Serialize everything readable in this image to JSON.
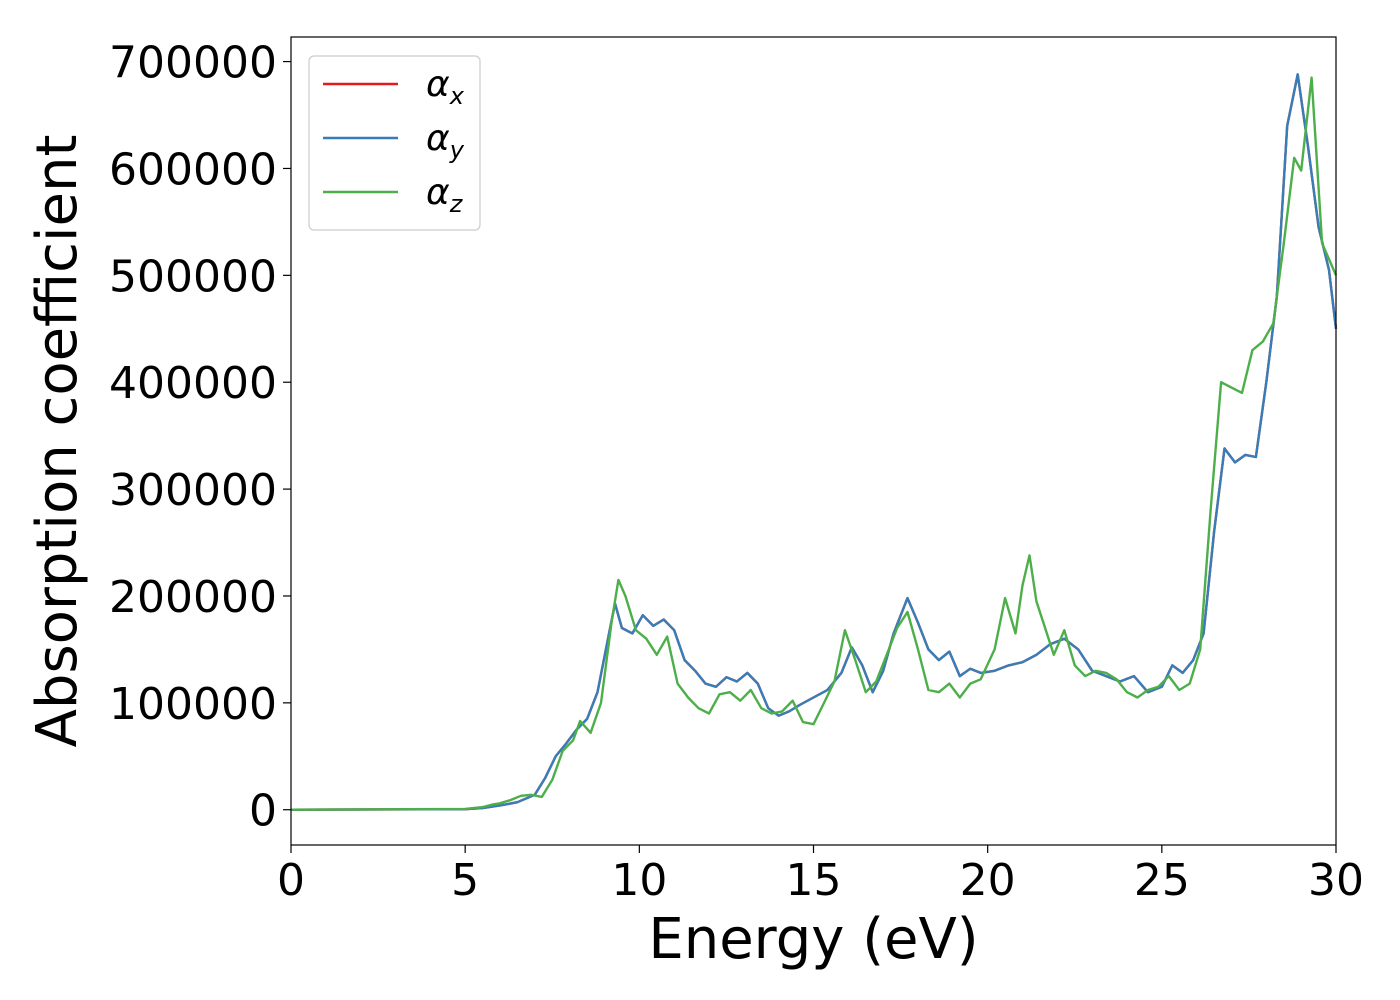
{
  "chart_data": {
    "type": "line",
    "xlabel": "Energy (eV)",
    "ylabel": "Absorption coefficient",
    "xlim": [
      0,
      30
    ],
    "ylim": [
      -33000,
      723000
    ],
    "xticks": [
      0,
      5,
      10,
      15,
      20,
      25,
      30
    ],
    "yticks": [
      0,
      100000,
      200000,
      300000,
      400000,
      500000,
      600000,
      700000
    ],
    "grid": false,
    "legend_position": "top-left",
    "series": [
      {
        "name": "α",
        "subscript": "x",
        "color": "#e41a1c",
        "x": [
          0,
          5,
          5.5,
          6,
          6.5,
          7,
          7.3,
          7.6,
          7.9,
          8.2,
          8.5,
          8.8,
          9.1,
          9.3,
          9.5,
          9.8,
          10.1,
          10.4,
          10.7,
          11,
          11.3,
          11.6,
          11.9,
          12.2,
          12.5,
          12.8,
          13.1,
          13.4,
          13.7,
          14,
          14.3,
          14.6,
          15,
          15.4,
          15.8,
          16.1,
          16.4,
          16.7,
          17,
          17.3,
          17.7,
          18,
          18.3,
          18.6,
          18.9,
          19.2,
          19.5,
          19.8,
          20.2,
          20.6,
          21,
          21.4,
          21.8,
          22.2,
          22.6,
          23,
          23.4,
          23.8,
          24.2,
          24.6,
          25,
          25.3,
          25.6,
          25.9,
          26.2,
          26.5,
          26.8,
          27.1,
          27.4,
          27.7,
          28,
          28.3,
          28.6,
          28.9,
          29.2,
          29.5,
          29.8,
          30
        ],
        "values": [
          0,
          500,
          1500,
          4000,
          7000,
          14000,
          30000,
          50000,
          62000,
          75000,
          85000,
          110000,
          160000,
          193000,
          170000,
          165000,
          182000,
          172000,
          178000,
          168000,
          140000,
          130000,
          118000,
          115000,
          124000,
          120000,
          128000,
          118000,
          95000,
          88000,
          92000,
          98000,
          105000,
          112000,
          128000,
          152000,
          135000,
          110000,
          130000,
          165000,
          198000,
          175000,
          150000,
          140000,
          148000,
          125000,
          132000,
          128000,
          130000,
          135000,
          138000,
          145000,
          155000,
          160000,
          150000,
          130000,
          125000,
          120000,
          125000,
          110000,
          115000,
          135000,
          128000,
          140000,
          165000,
          260000,
          338000,
          325000,
          332000,
          330000,
          400000,
          480000,
          640000,
          688000,
          620000,
          545000,
          505000,
          450000
        ]
      },
      {
        "name": "α",
        "subscript": "y",
        "color": "#377eb8",
        "x": [
          0,
          5,
          5.5,
          6,
          6.5,
          7,
          7.3,
          7.6,
          7.9,
          8.2,
          8.5,
          8.8,
          9.1,
          9.3,
          9.5,
          9.8,
          10.1,
          10.4,
          10.7,
          11,
          11.3,
          11.6,
          11.9,
          12.2,
          12.5,
          12.8,
          13.1,
          13.4,
          13.7,
          14,
          14.3,
          14.6,
          15,
          15.4,
          15.8,
          16.1,
          16.4,
          16.7,
          17,
          17.3,
          17.7,
          18,
          18.3,
          18.6,
          18.9,
          19.2,
          19.5,
          19.8,
          20.2,
          20.6,
          21,
          21.4,
          21.8,
          22.2,
          22.6,
          23,
          23.4,
          23.8,
          24.2,
          24.6,
          25,
          25.3,
          25.6,
          25.9,
          26.2,
          26.5,
          26.8,
          27.1,
          27.4,
          27.7,
          28,
          28.3,
          28.6,
          28.9,
          29.2,
          29.5,
          29.8,
          30
        ],
        "values": [
          0,
          500,
          1500,
          4000,
          7000,
          14000,
          30000,
          50000,
          62000,
          75000,
          85000,
          110000,
          160000,
          193000,
          170000,
          165000,
          182000,
          172000,
          178000,
          168000,
          140000,
          130000,
          118000,
          115000,
          124000,
          120000,
          128000,
          118000,
          95000,
          88000,
          92000,
          98000,
          105000,
          112000,
          128000,
          152000,
          135000,
          110000,
          130000,
          165000,
          198000,
          175000,
          150000,
          140000,
          148000,
          125000,
          132000,
          128000,
          130000,
          135000,
          138000,
          145000,
          155000,
          160000,
          150000,
          130000,
          125000,
          120000,
          125000,
          110000,
          115000,
          135000,
          128000,
          140000,
          165000,
          260000,
          338000,
          325000,
          332000,
          330000,
          400000,
          480000,
          640000,
          688000,
          620000,
          545000,
          505000,
          450000
        ]
      },
      {
        "name": "α",
        "subscript": "z",
        "color": "#4daf4a",
        "x": [
          0,
          5,
          5.5,
          5.8,
          6,
          6.3,
          6.6,
          6.9,
          7.2,
          7.5,
          7.8,
          8.1,
          8.3,
          8.6,
          8.9,
          9.2,
          9.4,
          9.6,
          9.9,
          10.2,
          10.5,
          10.8,
          11.1,
          11.4,
          11.7,
          12,
          12.3,
          12.6,
          12.9,
          13.2,
          13.5,
          13.8,
          14.1,
          14.4,
          14.7,
          15,
          15.3,
          15.6,
          15.9,
          16.2,
          16.5,
          16.8,
          17.1,
          17.4,
          17.7,
          18,
          18.3,
          18.6,
          18.9,
          19.2,
          19.5,
          19.8,
          20.2,
          20.5,
          20.8,
          21,
          21.2,
          21.4,
          21.6,
          21.9,
          22.2,
          22.5,
          22.8,
          23.1,
          23.4,
          23.7,
          24,
          24.3,
          24.6,
          24.9,
          25.2,
          25.5,
          25.8,
          26.1,
          26.4,
          26.7,
          27,
          27.3,
          27.6,
          27.9,
          28.2,
          28.5,
          28.8,
          29.0,
          29.3,
          29.6,
          30
        ],
        "values": [
          0,
          800,
          2500,
          5000,
          6000,
          9000,
          13000,
          14000,
          12000,
          28000,
          55000,
          65000,
          83000,
          72000,
          100000,
          175000,
          215000,
          200000,
          168000,
          160000,
          145000,
          162000,
          118000,
          105000,
          95000,
          90000,
          108000,
          110000,
          102000,
          112000,
          95000,
          90000,
          92000,
          102000,
          82000,
          80000,
          100000,
          120000,
          168000,
          140000,
          110000,
          120000,
          145000,
          170000,
          185000,
          150000,
          112000,
          110000,
          118000,
          105000,
          118000,
          122000,
          150000,
          198000,
          165000,
          210000,
          238000,
          195000,
          175000,
          145000,
          168000,
          135000,
          125000,
          130000,
          128000,
          122000,
          110000,
          105000,
          112000,
          115000,
          125000,
          112000,
          118000,
          150000,
          280000,
          400000,
          395000,
          390000,
          430000,
          438000,
          455000,
          530000,
          610000,
          598000,
          685000,
          530000,
          500000
        ]
      }
    ]
  }
}
